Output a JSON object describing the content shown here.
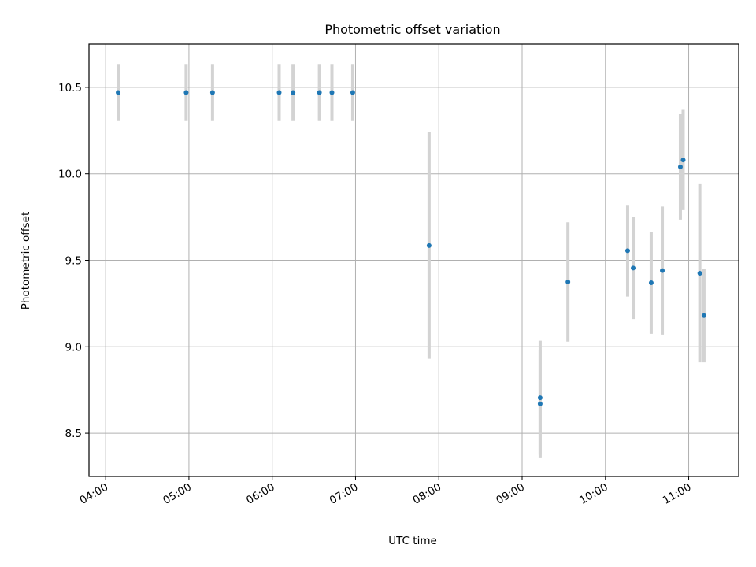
{
  "chart_data": {
    "type": "scatter",
    "title": "Photometric offset variation",
    "xlabel": "UTC time",
    "ylabel": "Photometric offset",
    "xlim": [
      "03:48",
      "11:36"
    ],
    "ylim": [
      8.25,
      10.75
    ],
    "x_ticks": [
      "04:00",
      "05:00",
      "06:00",
      "07:00",
      "08:00",
      "09:00",
      "10:00",
      "11:00"
    ],
    "y_ticks": [
      "8.5",
      "9.0",
      "9.5",
      "10.0",
      "10.5"
    ],
    "grid": true,
    "colors": {
      "points": "#1f77b4",
      "errorbars": "#d3d3d3",
      "grid": "#b0b0b0"
    },
    "points": [
      {
        "x": "04:09",
        "y": 10.47,
        "yerr": 0.165
      },
      {
        "x": "04:58",
        "y": 10.47,
        "yerr": 0.165
      },
      {
        "x": "05:17",
        "y": 10.47,
        "yerr": 0.165
      },
      {
        "x": "06:05",
        "y": 10.47,
        "yerr": 0.165
      },
      {
        "x": "06:15",
        "y": 10.47,
        "yerr": 0.165
      },
      {
        "x": "06:34",
        "y": 10.47,
        "yerr": 0.165
      },
      {
        "x": "06:43",
        "y": 10.47,
        "yerr": 0.165
      },
      {
        "x": "06:58",
        "y": 10.47,
        "yerr": 0.165
      },
      {
        "x": "07:53",
        "y": 9.585,
        "yerr": 0.655
      },
      {
        "x": "09:13",
        "y": 8.67,
        "yerr": 0.31
      },
      {
        "x": "09:13",
        "y": 8.705,
        "yerr": 0.33
      },
      {
        "x": "09:33",
        "y": 9.375,
        "yerr": 0.345
      },
      {
        "x": "10:16",
        "y": 9.555,
        "yerr": 0.265
      },
      {
        "x": "10:20",
        "y": 9.455,
        "yerr": 0.295
      },
      {
        "x": "10:33",
        "y": 9.37,
        "yerr": 0.295
      },
      {
        "x": "10:41",
        "y": 9.44,
        "yerr": 0.37
      },
      {
        "x": "10:54",
        "y": 10.04,
        "yerr": 0.305
      },
      {
        "x": "10:56",
        "y": 10.08,
        "yerr": 0.29
      },
      {
        "x": "11:08",
        "y": 9.425,
        "yerr": 0.515
      },
      {
        "x": "11:11",
        "y": 9.18,
        "yerr": 0.27
      }
    ]
  }
}
